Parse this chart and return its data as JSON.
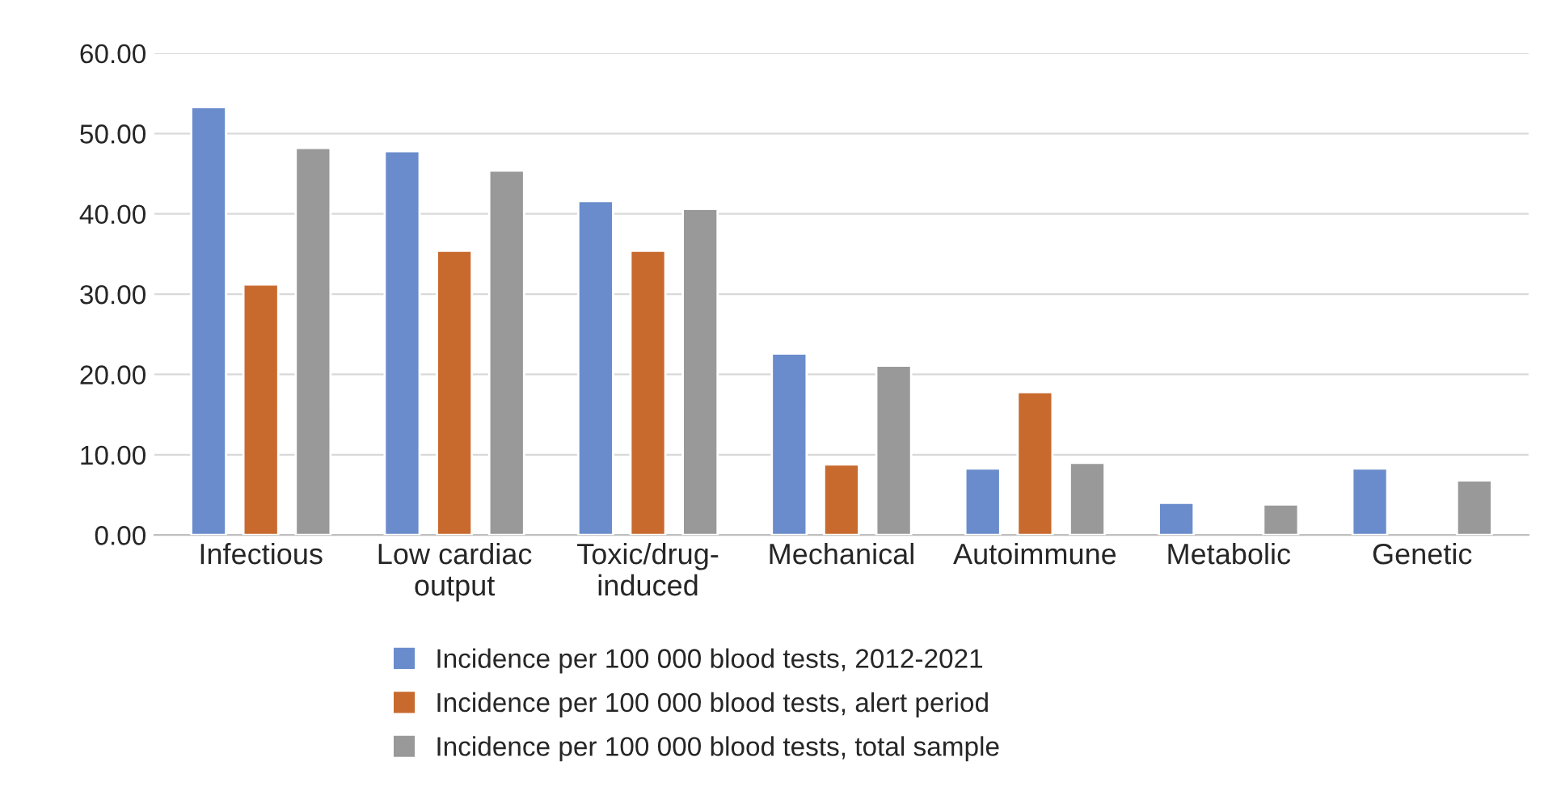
{
  "chart_data": {
    "type": "bar",
    "categories": [
      "Infectious",
      "Low cardiac\noutput",
      "Toxic/drug-\ninduced",
      "Mechanical",
      "Autoimmune",
      "Metabolic",
      "Genetic"
    ],
    "series": [
      {
        "name": "Incidence per 100 000 blood tests, 2012-2021",
        "color": "#6a8ccc",
        "values": [
          53.3,
          47.8,
          41.6,
          22.6,
          8.3,
          4.0,
          8.3
        ]
      },
      {
        "name": "Incidence per 100 000 blood tests, alert period",
        "color": "#c86a2e",
        "values": [
          31.2,
          35.4,
          35.4,
          8.8,
          17.8,
          null,
          null
        ]
      },
      {
        "name": "Incidence per 100 000 blood tests, total sample",
        "color": "#999999",
        "values": [
          48.2,
          45.4,
          40.6,
          21.1,
          9.0,
          3.8,
          6.8
        ]
      }
    ],
    "ylim": [
      0,
      60
    ],
    "yticks": [
      {
        "value": 0,
        "label": "0.00"
      },
      {
        "value": 10,
        "label": "10.00"
      },
      {
        "value": 20,
        "label": "20.00"
      },
      {
        "value": 30,
        "label": "30.00"
      },
      {
        "value": 40,
        "label": "40.00"
      },
      {
        "value": 50,
        "label": "50.00"
      },
      {
        "value": 60,
        "label": "60.00"
      }
    ],
    "grid": "y",
    "legend": "bottom"
  }
}
